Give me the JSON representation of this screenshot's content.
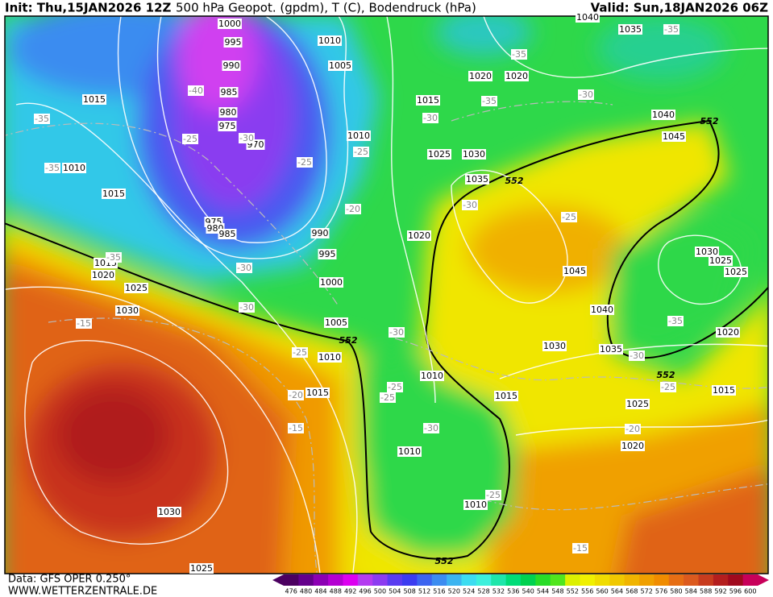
{
  "map": {
    "header": {
      "init": "Init: Thu,15JAN2026 12Z",
      "title": "500 hPa Geopot. (gpdm), T (C), Bodendruck (hPa)",
      "valid": "Valid: Sun,18JAN2026 06Z"
    },
    "footer": {
      "data": "Data: GFS OPER 0.250°",
      "site": "WWW.WETTERZENTRALE.DE"
    },
    "pressure_labels": [
      1000,
      995,
      990,
      985,
      980,
      975,
      970,
      975,
      980,
      985,
      1010,
      1005,
      1015,
      1010,
      1015,
      1010,
      1015,
      1020,
      1020,
      1025,
      1030,
      1035,
      1040,
      1035,
      1040,
      1045,
      990,
      995,
      1000,
      1005,
      1010,
      1015,
      1020,
      1015,
      1020,
      1025,
      1030,
      1045,
      1040,
      1030,
      1035,
      1030,
      1025,
      1025,
      1020,
      1015,
      1010,
      1015,
      1025,
      1020,
      1010,
      1010,
      1030,
      1025
    ],
    "temperature_labels": [
      -40,
      -35,
      -35,
      -25,
      -30,
      -25,
      -25,
      -20,
      -30,
      -30,
      -15,
      -25,
      -20,
      -15,
      -30,
      -35,
      -35,
      -30,
      -30,
      -25,
      -30,
      -25,
      -25,
      -30,
      -25,
      -35,
      -30,
      -25,
      -20,
      -15,
      -35,
      -35
    ],
    "height_labels": [
      552,
      552,
      552,
      552,
      552
    ],
    "legend": {
      "labels": [
        476,
        480,
        484,
        488,
        492,
        496,
        500,
        504,
        508,
        512,
        516,
        520,
        524,
        528,
        532,
        536,
        540,
        544,
        548,
        552,
        556,
        560,
        564,
        568,
        572,
        576,
        580,
        584,
        588,
        592,
        596,
        600
      ],
      "colors": [
        "#4b0060",
        "#64008c",
        "#8c00b4",
        "#b400d2",
        "#dc00f0",
        "#b43cf0",
        "#8c3cf0",
        "#5a3cf0",
        "#3c3cf0",
        "#3c64f0",
        "#3c8cf0",
        "#3cb4f0",
        "#3cdcf0",
        "#3cf0dc",
        "#1ee6aa",
        "#00dc78",
        "#00d250",
        "#28dc28",
        "#50e61e",
        "#dcf000",
        "#f0f000",
        "#f0dc00",
        "#f0c800",
        "#f0b400",
        "#f0a000",
        "#f08c00",
        "#e66e14",
        "#dc5a1e",
        "#c83c1e",
        "#b41e1e",
        "#a00a1e",
        "#c8005a"
      ]
    }
  }
}
